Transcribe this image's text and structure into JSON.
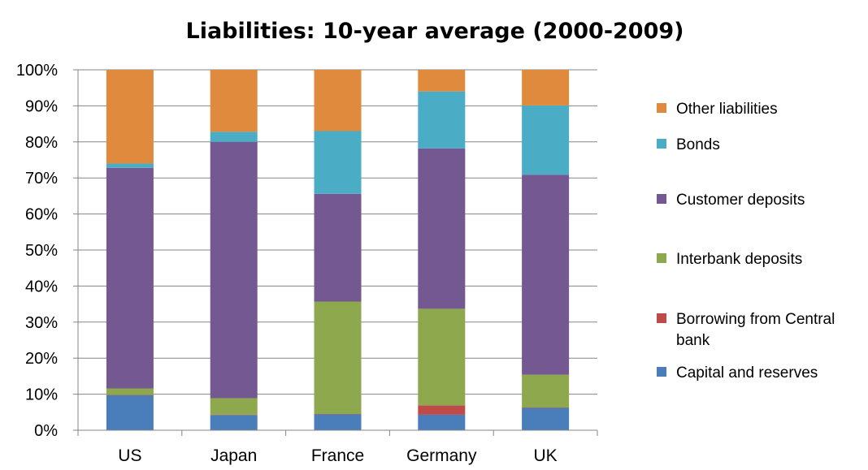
{
  "chart_data": {
    "type": "bar",
    "stacked": true,
    "percent_stacked": true,
    "title": "Liabilities: 10-year average (2000-2009)",
    "xlabel": "",
    "ylabel": "",
    "ylim": [
      0,
      100
    ],
    "y_ticks": [
      "0%",
      "10%",
      "20%",
      "30%",
      "40%",
      "50%",
      "60%",
      "70%",
      "80%",
      "90%",
      "100%"
    ],
    "grid": true,
    "legend_position": "right",
    "categories": [
      "US",
      "Japan",
      "France",
      "Germany",
      "UK"
    ],
    "series": [
      {
        "name": "Capital and reserves",
        "color": "#4a7ebb",
        "values": [
          9.7,
          4.2,
          4.4,
          4.3,
          6.2
        ]
      },
      {
        "name": "Borrowing from Central bank",
        "color": "#be4b48",
        "values": [
          0.1,
          0.1,
          0.1,
          2.6,
          0.1
        ]
      },
      {
        "name": "Interbank deposits",
        "color": "#8ea84d",
        "values": [
          1.8,
          4.6,
          31.2,
          26.8,
          9.1
        ]
      },
      {
        "name": "Customer deposits",
        "color": "#735891",
        "values": [
          61.2,
          71.1,
          29.9,
          44.5,
          55.5
        ]
      },
      {
        "name": "Bonds",
        "color": "#4bacc6",
        "values": [
          1.2,
          2.8,
          17.4,
          15.8,
          19.2
        ]
      },
      {
        "name": "Other liabilities",
        "color": "#e08a3e",
        "values": [
          26.0,
          17.2,
          17.0,
          6.0,
          9.9
        ]
      }
    ]
  }
}
